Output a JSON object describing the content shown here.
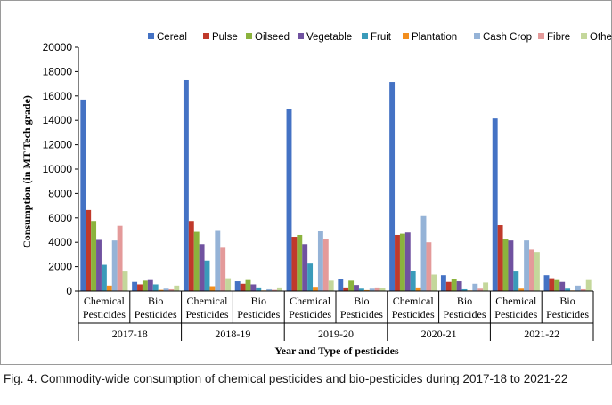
{
  "caption": "Fig. 4. Commodity-wide consumption of chemical pesticides and bio-pesticides during 2017-18 to 2021-22",
  "chart_data": {
    "type": "bar",
    "xlabel": "Year and Type of pesticides",
    "ylabel": "Consumption (in MT Tech grade)",
    "ylim": [
      0,
      20000
    ],
    "yticks": [
      0,
      2000,
      4000,
      6000,
      8000,
      10000,
      12000,
      14000,
      16000,
      18000,
      20000
    ],
    "legend_position": "top",
    "groups": [
      "2017-18",
      "2018-19",
      "2019-20",
      "2020-21",
      "2021-22"
    ],
    "types": [
      [
        "Chemical",
        "Pesticides"
      ],
      [
        "Bio",
        "Pesticides"
      ]
    ],
    "categories": [
      "2017-18 Chemical Pesticides",
      "2017-18 Bio Pesticides",
      "2018-19 Chemical Pesticides",
      "2018-19 Bio Pesticides",
      "2019-20 Chemical Pesticides",
      "2019-20 Bio Pesticides",
      "2020-21 Chemical Pesticides",
      "2020-21 Bio Pesticides",
      "2021-22 Chemical Pesticides",
      "2021-22 Bio Pesticides"
    ],
    "series": [
      {
        "name": "Cereal",
        "color": "#4472C4",
        "values": [
          15700,
          750,
          17300,
          800,
          14950,
          1000,
          17150,
          1300,
          14150,
          1300
        ]
      },
      {
        "name": "Pulse",
        "color": "#C0392B",
        "values": [
          6650,
          550,
          5750,
          600,
          4450,
          300,
          4600,
          750,
          5400,
          1050
        ]
      },
      {
        "name": "Oilseed",
        "color": "#8BB33D",
        "values": [
          5750,
          850,
          4850,
          900,
          4600,
          850,
          4700,
          1000,
          4300,
          900
        ]
      },
      {
        "name": "Vegetable",
        "color": "#7052A0",
        "values": [
          4200,
          900,
          3850,
          550,
          3850,
          500,
          4800,
          800,
          4150,
          750
        ]
      },
      {
        "name": "Fruit",
        "color": "#3A9BBA",
        "values": [
          2150,
          550,
          2500,
          300,
          2250,
          200,
          1650,
          150,
          1600,
          200
        ]
      },
      {
        "name": "Plantation",
        "color": "#F28E1E",
        "values": [
          450,
          100,
          400,
          50,
          350,
          80,
          300,
          50,
          200,
          50
        ]
      },
      {
        "name": "Cash Crop",
        "color": "#95B3D7",
        "values": [
          4150,
          200,
          5000,
          150,
          4900,
          200,
          6150,
          600,
          4150,
          450
        ]
      },
      {
        "name": "Fibre",
        "color": "#E49A9A",
        "values": [
          5350,
          150,
          3550,
          100,
          4300,
          300,
          4000,
          200,
          3400,
          150
        ]
      },
      {
        "name": "Other",
        "color": "#C4D79B",
        "values": [
          1600,
          450,
          1050,
          300,
          850,
          250,
          1350,
          700,
          3200,
          900
        ]
      }
    ]
  }
}
